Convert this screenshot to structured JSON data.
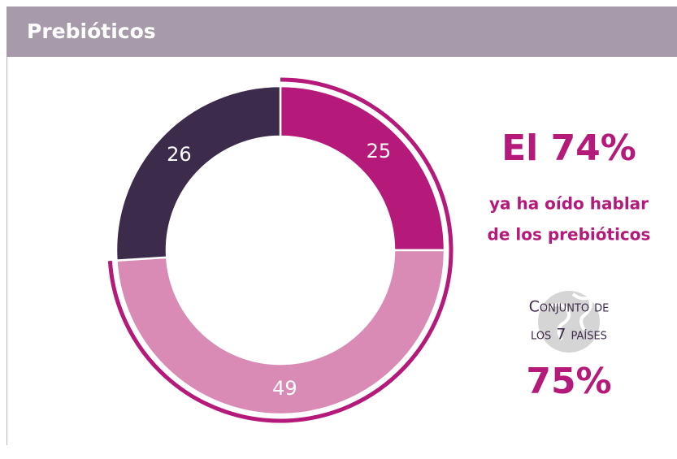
{
  "chart_data": {
    "type": "donut",
    "title": "Prebióticos",
    "values": [
      25,
      49,
      26
    ],
    "colors": [
      "#b5197a",
      "#d98bb5",
      "#3d2b4b"
    ],
    "highlight_color": "#b5197a",
    "annotations": {
      "headline": "El 74%",
      "lines": [
        "ya ha oído hablar",
        "de los prebióticos"
      ],
      "group_lines": [
        "Conjunto de",
        "los 7 países"
      ],
      "group_value": "75%"
    }
  }
}
